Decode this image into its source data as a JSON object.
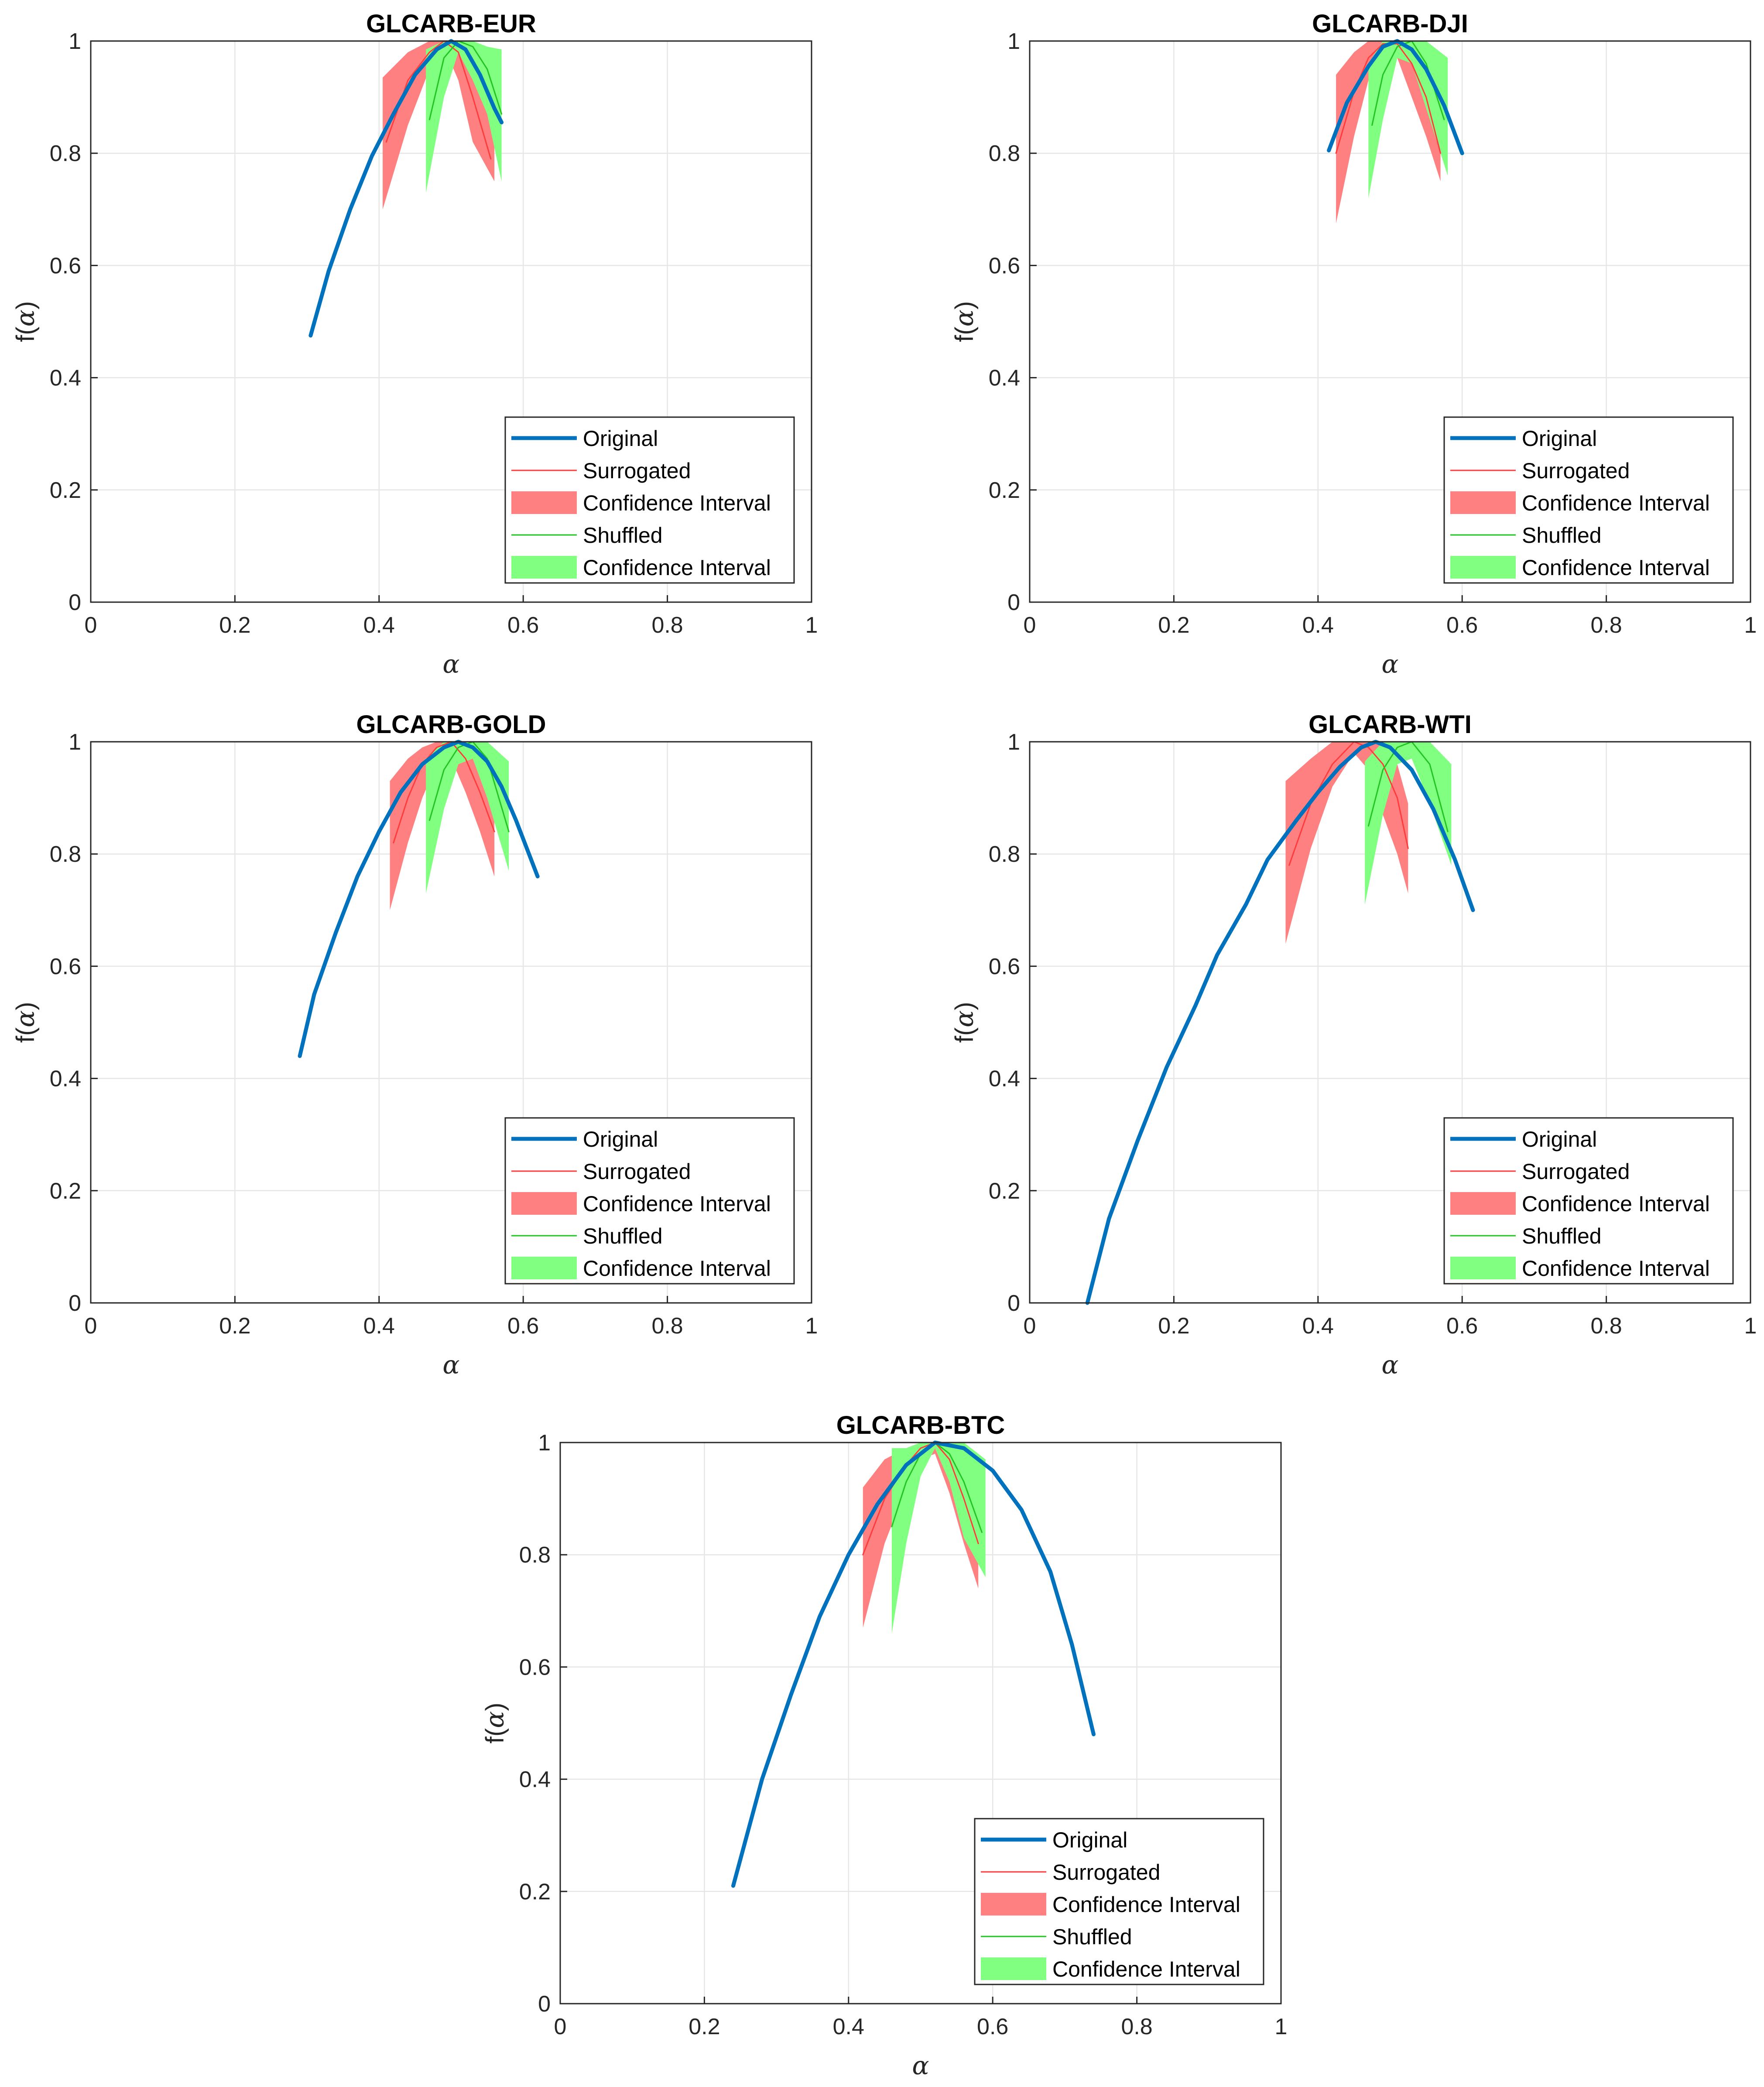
{
  "figure": {
    "colors": {
      "original": "#0072BD",
      "surrogated": "#FF3B3B",
      "surrogated_band": "#FF8080",
      "shuffled": "#22C422",
      "shuffled_band": "#80FF80",
      "grid": "#E6E6E6",
      "axis": "#262626"
    },
    "axis_labels": {
      "x": "α",
      "y_prefix": "f(",
      "y_symbol": "α",
      "y_suffix": ")"
    },
    "x_ticks": [
      "0",
      "0.2",
      "0.4",
      "0.6",
      "0.8",
      "1"
    ],
    "y_ticks": [
      "0",
      "0.2",
      "0.4",
      "0.6",
      "0.8",
      "1"
    ],
    "legend": [
      "Original",
      "Surrogated",
      "Confidence Interval",
      "Shuffled",
      "Confidence Interval"
    ]
  },
  "chart_data": [
    {
      "type": "line",
      "title": "GLCARB-EUR",
      "xlabel": "α",
      "ylabel": "f(α)",
      "xlim": [
        0,
        1
      ],
      "ylim": [
        0,
        1
      ],
      "grid": true,
      "legend_position": "bottom-right",
      "series": [
        {
          "name": "Original",
          "x": [
            0.305,
            0.33,
            0.36,
            0.39,
            0.42,
            0.45,
            0.48,
            0.5,
            0.52,
            0.54,
            0.56,
            0.57
          ],
          "y": [
            0.475,
            0.59,
            0.7,
            0.795,
            0.87,
            0.94,
            0.985,
            1.0,
            0.985,
            0.94,
            0.88,
            0.855
          ]
        },
        {
          "name": "Surrogated",
          "x": [
            0.41,
            0.44,
            0.47,
            0.49,
            0.51,
            0.53,
            0.555
          ],
          "y": [
            0.82,
            0.93,
            0.98,
            1.0,
            0.98,
            0.9,
            0.79
          ]
        },
        {
          "name": "Confidence Interval",
          "x": [
            0.405,
            0.44,
            0.47,
            0.49,
            0.51,
            0.53,
            0.56
          ],
          "lower": [
            0.7,
            0.85,
            0.95,
            0.99,
            0.93,
            0.82,
            0.75
          ],
          "upper": [
            0.935,
            0.98,
            1.0,
            1.0,
            1.0,
            0.98,
            0.85
          ]
        },
        {
          "name": "Shuffled",
          "x": [
            0.47,
            0.49,
            0.51,
            0.53,
            0.55,
            0.57
          ],
          "y": [
            0.86,
            0.97,
            1.0,
            0.99,
            0.95,
            0.87
          ]
        },
        {
          "name": "Confidence Interval",
          "x": [
            0.465,
            0.49,
            0.51,
            0.53,
            0.55,
            0.57
          ],
          "lower": [
            0.73,
            0.9,
            0.98,
            0.93,
            0.87,
            0.75
          ],
          "upper": [
            0.985,
            1.0,
            1.0,
            1.0,
            0.99,
            0.985
          ]
        }
      ]
    },
    {
      "type": "line",
      "title": "GLCARB-DJI",
      "xlabel": "α",
      "ylabel": "f(α)",
      "xlim": [
        0,
        1
      ],
      "ylim": [
        0,
        1
      ],
      "grid": true,
      "legend_position": "bottom-right",
      "series": [
        {
          "name": "Original",
          "x": [
            0.415,
            0.44,
            0.47,
            0.49,
            0.51,
            0.53,
            0.55,
            0.575,
            0.6
          ],
          "y": [
            0.805,
            0.89,
            0.955,
            0.99,
            1.0,
            0.985,
            0.95,
            0.885,
            0.8
          ]
        },
        {
          "name": "Surrogated",
          "x": [
            0.425,
            0.45,
            0.47,
            0.49,
            0.51,
            0.53,
            0.55,
            0.57
          ],
          "y": [
            0.8,
            0.91,
            0.97,
            0.995,
            0.995,
            0.96,
            0.9,
            0.8
          ]
        },
        {
          "name": "Confidence Interval",
          "x": [
            0.425,
            0.45,
            0.47,
            0.49,
            0.51,
            0.53,
            0.55,
            0.57
          ],
          "lower": [
            0.675,
            0.83,
            0.93,
            0.98,
            0.97,
            0.9,
            0.83,
            0.75
          ],
          "upper": [
            0.94,
            0.98,
            1.0,
            1.0,
            1.0,
            1.0,
            0.96,
            0.88
          ]
        },
        {
          "name": "Shuffled",
          "x": [
            0.475,
            0.49,
            0.51,
            0.53,
            0.55,
            0.575
          ],
          "y": [
            0.85,
            0.94,
            0.99,
            1.0,
            0.96,
            0.86
          ]
        },
        {
          "name": "Confidence Interval",
          "x": [
            0.47,
            0.49,
            0.51,
            0.53,
            0.55,
            0.58
          ],
          "lower": [
            0.72,
            0.86,
            0.97,
            0.96,
            0.88,
            0.76
          ],
          "upper": [
            0.96,
            1.0,
            1.0,
            1.0,
            1.0,
            0.97
          ]
        }
      ]
    },
    {
      "type": "line",
      "title": "GLCARB-GOLD",
      "xlabel": "α",
      "ylabel": "f(α)",
      "xlim": [
        0,
        1
      ],
      "ylim": [
        0,
        1
      ],
      "grid": true,
      "legend_position": "bottom-right",
      "series": [
        {
          "name": "Original",
          "x": [
            0.29,
            0.31,
            0.34,
            0.37,
            0.4,
            0.43,
            0.46,
            0.49,
            0.51,
            0.53,
            0.55,
            0.57,
            0.59,
            0.62
          ],
          "y": [
            0.44,
            0.55,
            0.66,
            0.76,
            0.84,
            0.91,
            0.96,
            0.99,
            1.0,
            0.99,
            0.965,
            0.92,
            0.86,
            0.76
          ]
        },
        {
          "name": "Surrogated",
          "x": [
            0.42,
            0.44,
            0.46,
            0.48,
            0.5,
            0.52,
            0.54,
            0.56
          ],
          "y": [
            0.82,
            0.9,
            0.96,
            0.99,
            1.0,
            0.97,
            0.91,
            0.84
          ]
        },
        {
          "name": "Confidence Interval",
          "x": [
            0.415,
            0.44,
            0.46,
            0.48,
            0.5,
            0.52,
            0.54,
            0.56
          ],
          "lower": [
            0.7,
            0.82,
            0.9,
            0.96,
            0.97,
            0.91,
            0.84,
            0.76
          ],
          "upper": [
            0.93,
            0.97,
            0.99,
            1.0,
            1.0,
            1.0,
            0.98,
            0.92
          ]
        },
        {
          "name": "Shuffled",
          "x": [
            0.47,
            0.49,
            0.51,
            0.53,
            0.55,
            0.58
          ],
          "y": [
            0.86,
            0.95,
            0.99,
            1.0,
            0.97,
            0.84
          ]
        },
        {
          "name": "Confidence Interval",
          "x": [
            0.465,
            0.49,
            0.51,
            0.53,
            0.55,
            0.58
          ],
          "lower": [
            0.73,
            0.88,
            0.96,
            0.97,
            0.9,
            0.77
          ],
          "upper": [
            0.97,
            1.0,
            1.0,
            1.0,
            1.0,
            0.965
          ]
        }
      ]
    },
    {
      "type": "line",
      "title": "GLCARB-WTI",
      "xlabel": "α",
      "ylabel": "f(α)",
      "xlim": [
        0,
        1
      ],
      "ylim": [
        0,
        1
      ],
      "grid": true,
      "legend_position": "bottom-right",
      "series": [
        {
          "name": "Original",
          "x": [
            0.08,
            0.11,
            0.15,
            0.19,
            0.23,
            0.26,
            0.3,
            0.33,
            0.37,
            0.4,
            0.43,
            0.46,
            0.48,
            0.5,
            0.53,
            0.56,
            0.59,
            0.615
          ],
          "y": [
            0.0,
            0.15,
            0.29,
            0.42,
            0.53,
            0.62,
            0.71,
            0.79,
            0.86,
            0.91,
            0.955,
            0.99,
            1.0,
            0.99,
            0.95,
            0.88,
            0.79,
            0.7
          ]
        },
        {
          "name": "Surrogated",
          "x": [
            0.36,
            0.39,
            0.42,
            0.45,
            0.47,
            0.49,
            0.51,
            0.525
          ],
          "y": [
            0.78,
            0.89,
            0.96,
            1.0,
            0.99,
            0.96,
            0.9,
            0.81
          ]
        },
        {
          "name": "Confidence Interval",
          "x": [
            0.355,
            0.39,
            0.42,
            0.45,
            0.47,
            0.49,
            0.51,
            0.525
          ],
          "lower": [
            0.64,
            0.81,
            0.92,
            0.98,
            0.95,
            0.87,
            0.8,
            0.73
          ],
          "upper": [
            0.93,
            0.97,
            1.0,
            1.0,
            1.0,
            1.0,
            0.96,
            0.89
          ]
        },
        {
          "name": "Shuffled",
          "x": [
            0.47,
            0.49,
            0.51,
            0.53,
            0.555,
            0.58
          ],
          "y": [
            0.85,
            0.95,
            0.99,
            1.0,
            0.96,
            0.84
          ]
        },
        {
          "name": "Confidence Interval",
          "x": [
            0.465,
            0.49,
            0.51,
            0.53,
            0.555,
            0.585
          ],
          "lower": [
            0.71,
            0.87,
            0.96,
            0.97,
            0.89,
            0.78
          ],
          "upper": [
            0.965,
            1.0,
            1.0,
            1.0,
            1.0,
            0.96
          ]
        }
      ]
    },
    {
      "type": "line",
      "title": "GLCARB-BTC",
      "xlabel": "α",
      "ylabel": "f(α)",
      "xlim": [
        0,
        1
      ],
      "ylim": [
        0,
        1
      ],
      "grid": true,
      "legend_position": "bottom-right",
      "series": [
        {
          "name": "Original",
          "x": [
            0.24,
            0.28,
            0.32,
            0.36,
            0.4,
            0.44,
            0.48,
            0.52,
            0.56,
            0.6,
            0.64,
            0.68,
            0.71,
            0.74
          ],
          "y": [
            0.21,
            0.4,
            0.55,
            0.69,
            0.8,
            0.89,
            0.96,
            1.0,
            0.99,
            0.95,
            0.88,
            0.77,
            0.64,
            0.48
          ]
        },
        {
          "name": "Surrogated",
          "x": [
            0.42,
            0.45,
            0.48,
            0.5,
            0.52,
            0.54,
            0.56,
            0.58
          ],
          "y": [
            0.8,
            0.9,
            0.96,
            0.99,
            1.0,
            0.97,
            0.9,
            0.82
          ]
        },
        {
          "name": "Confidence Interval",
          "x": [
            0.42,
            0.45,
            0.48,
            0.5,
            0.52,
            0.54,
            0.56,
            0.58
          ],
          "lower": [
            0.67,
            0.82,
            0.92,
            0.97,
            0.98,
            0.91,
            0.82,
            0.74
          ],
          "upper": [
            0.92,
            0.97,
            0.99,
            1.0,
            1.0,
            1.0,
            0.97,
            0.9
          ]
        },
        {
          "name": "Shuffled",
          "x": [
            0.46,
            0.48,
            0.5,
            0.52,
            0.54,
            0.56,
            0.585
          ],
          "y": [
            0.85,
            0.93,
            0.98,
            1.0,
            0.98,
            0.93,
            0.84
          ]
        },
        {
          "name": "Confidence Interval",
          "x": [
            0.46,
            0.48,
            0.5,
            0.52,
            0.54,
            0.56,
            0.59
          ],
          "lower": [
            0.66,
            0.82,
            0.94,
            0.99,
            0.93,
            0.83,
            0.76
          ],
          "upper": [
            0.99,
            0.99,
            1.0,
            1.0,
            1.0,
            1.0,
            0.97
          ]
        }
      ]
    }
  ]
}
